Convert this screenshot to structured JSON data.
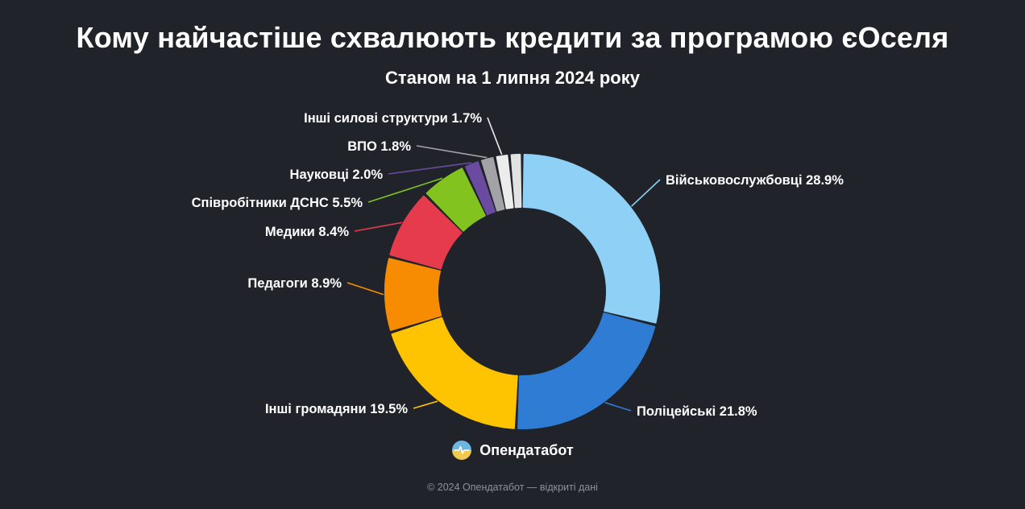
{
  "title": "Кому найчастіше схвалюють кредити за програмою єОселя",
  "subtitle": "Станом на 1 липня 2024 року",
  "chart_data": {
    "type": "pie",
    "variant": "donut",
    "title": "Кому найчастіше схвалюють кредити за програмою єОселя",
    "subtitle": "Станом на 1 липня 2024 року",
    "unit": "%",
    "start_angle_deg": -90,
    "direction": "clockwise",
    "segments": [
      {
        "name": "Військовослужбовці",
        "value": 28.9,
        "color": "#8fd0f7"
      },
      {
        "name": "Поліцейські",
        "value": 21.8,
        "color": "#2e7cd4"
      },
      {
        "name": "Інші громадяни",
        "value": 19.5,
        "color": "#fec301"
      },
      {
        "name": "Педагоги",
        "value": 8.9,
        "color": "#f78c02"
      },
      {
        "name": "Медики",
        "value": 8.4,
        "color": "#e63b4d"
      },
      {
        "name": "Співробітники ДСНС",
        "value": 5.5,
        "color": "#82c31f"
      },
      {
        "name": "Науковці",
        "value": 2.0,
        "color": "#6a4b9f"
      },
      {
        "name": "ВПО",
        "value": 1.8,
        "color": "#a3a3a7"
      },
      {
        "name": "Інші силові структури",
        "value": 1.7,
        "color": "#ececec"
      }
    ],
    "unlabeled_remainder": {
      "value": 1.5,
      "color": "#e2e2e2"
    }
  },
  "brand": {
    "name": "Опендатабот",
    "logo_colors": {
      "blue": "#6cb6e4",
      "yellow": "#f2c94c"
    }
  },
  "footer": {
    "copyright": "© 2024 Опендатабот — відкриті дані"
  }
}
